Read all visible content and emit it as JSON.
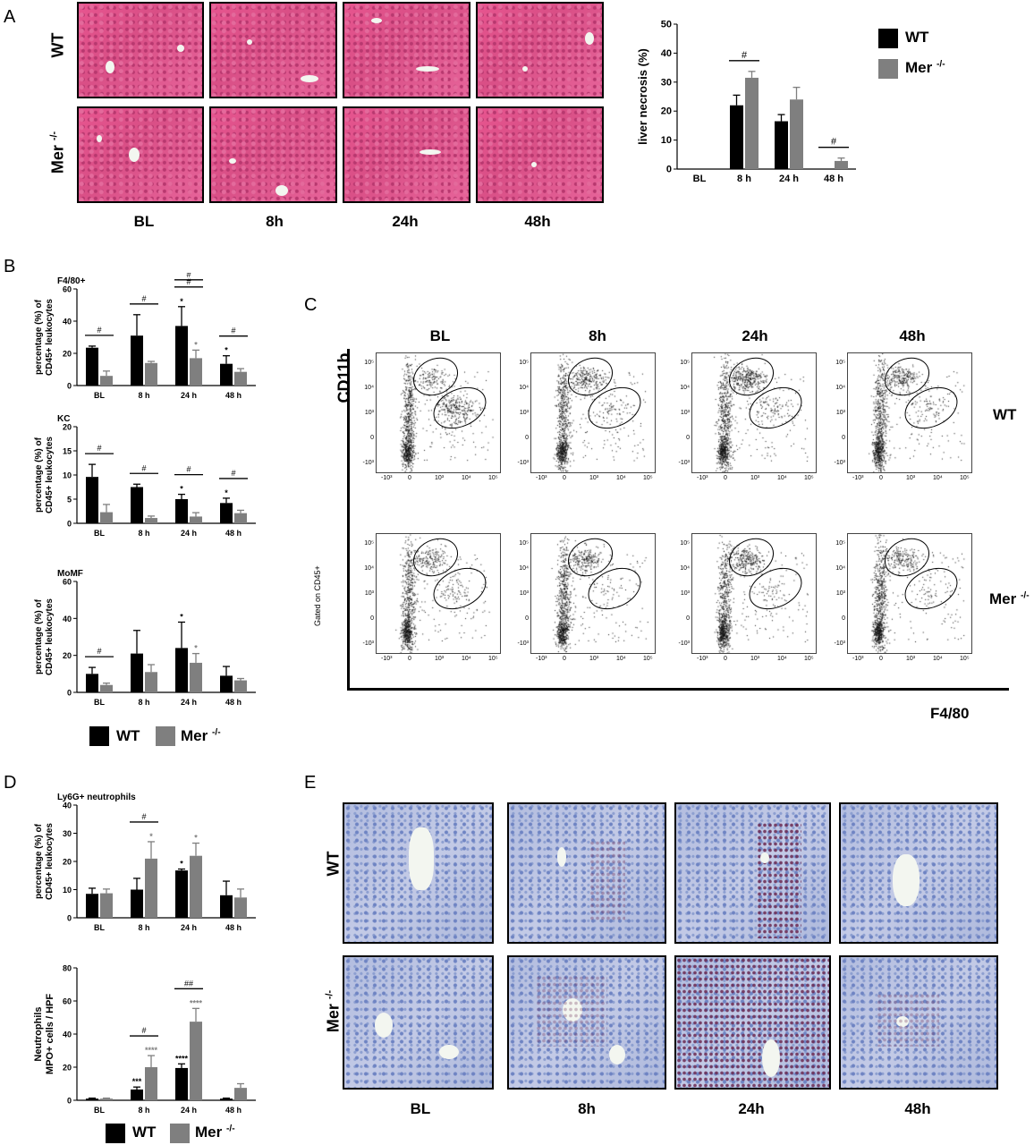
{
  "panels": {
    "a": "A",
    "b": "B",
    "c": "C",
    "d": "D",
    "e": "E"
  },
  "colors": {
    "wt": "#000000",
    "mer": "#7f7f7f",
    "he_stain": "#e0588f",
    "ihc_stain": "#b7c1e0"
  },
  "panel_a": {
    "row_labels": [
      "WT",
      "Mer"
    ],
    "mer_superscript": "-/-",
    "time_labels": [
      "BL",
      "8h",
      "24h",
      "48h"
    ]
  },
  "panel_c": {
    "ylabel": "CD11b",
    "xlabel": "F4/80",
    "time_labels": [
      "BL",
      "8h",
      "24h",
      "48h"
    ],
    "row_labels": [
      "WT",
      "Mer"
    ],
    "mer_superscript": "-/-",
    "gating_note": "Gated on CD45+",
    "axis_ticks_y": [
      "10⁵",
      "10⁴",
      "10³",
      "0",
      "-10³"
    ],
    "axis_ticks_x": [
      "-10³",
      "0",
      "10³",
      "10⁴",
      "10⁵"
    ]
  },
  "panel_e": {
    "row_labels": [
      "WT",
      "Mer"
    ],
    "mer_superscript": "-/-",
    "time_labels": [
      "BL",
      "8h",
      "24h",
      "48h"
    ]
  },
  "legend_b": {
    "wt": "WT",
    "mer": "Mer",
    "mer_sup": "-/-"
  },
  "legend_d": {
    "wt": "WT",
    "mer": "Mer",
    "mer_sup": "-/-"
  },
  "chart_data": [
    {
      "id": "liver-necrosis",
      "type": "bar",
      "title": "",
      "categories": [
        "BL",
        "8 h",
        "24 h",
        "48 h"
      ],
      "ylabel": "liver necrosis (%)",
      "ylim": [
        0,
        50
      ],
      "yticks": [
        0,
        10,
        20,
        30,
        40,
        50
      ],
      "legend_position": "right",
      "series": [
        {
          "name": "WT",
          "values": [
            0,
            22,
            16.5,
            0
          ],
          "errors": [
            0,
            3.5,
            2.3,
            0
          ]
        },
        {
          "name": "Mer -/-",
          "values": [
            0,
            31.5,
            24,
            2.8
          ],
          "errors": [
            0,
            2.2,
            4.2,
            1
          ]
        }
      ],
      "annotations": [
        {
          "category": "8 h",
          "type": "bracket",
          "text": "#"
        },
        {
          "category": "48 h",
          "type": "bracket",
          "text": "#"
        }
      ]
    },
    {
      "id": "f480",
      "type": "bar",
      "title": "F4/80+",
      "categories": [
        "BL",
        "8 h",
        "24 h",
        "48 h"
      ],
      "ylabel": "percentage (%) of CD45+ leukocytes",
      "ylim": [
        0,
        60
      ],
      "yticks": [
        0,
        20,
        40,
        60
      ],
      "series": [
        {
          "name": "WT",
          "values": [
            23.5,
            31,
            37,
            13.5
          ],
          "errors": [
            1,
            13,
            12,
            5
          ]
        },
        {
          "name": "Mer -/-",
          "values": [
            6,
            14,
            17,
            8.5
          ],
          "errors": [
            3,
            1,
            5,
            2
          ]
        }
      ],
      "annotations": [
        {
          "category": "BL",
          "type": "bracket",
          "text": "#"
        },
        {
          "category": "8 h",
          "type": "bracket",
          "text": "#"
        },
        {
          "category": "24 h",
          "type": "bracket",
          "text": "#"
        },
        {
          "category": "24 h",
          "type": "bracket-high",
          "text": "#"
        },
        {
          "category": "48 h",
          "type": "bracket",
          "text": "#"
        },
        {
          "category": "24 h",
          "series": 0,
          "text": "*"
        },
        {
          "category": "24 h",
          "series": 1,
          "text": "*"
        },
        {
          "category": "48 h",
          "series": 0,
          "text": "*"
        }
      ]
    },
    {
      "id": "kc",
      "type": "bar",
      "title": "KC",
      "categories": [
        "BL",
        "8 h",
        "24 h",
        "48 h"
      ],
      "ylabel": "percentage (%) of CD45+ leukocytes",
      "ylim": [
        0,
        20
      ],
      "yticks": [
        0,
        5,
        10,
        15,
        20
      ],
      "series": [
        {
          "name": "WT",
          "values": [
            9.6,
            7.5,
            5,
            4.2
          ],
          "errors": [
            2.6,
            0.6,
            1,
            1
          ]
        },
        {
          "name": "Mer -/-",
          "values": [
            2.3,
            1.1,
            1.4,
            2.1
          ],
          "errors": [
            1.6,
            0.4,
            0.8,
            0.6
          ]
        }
      ],
      "annotations": [
        {
          "category": "BL",
          "type": "bracket",
          "text": "#"
        },
        {
          "category": "8 h",
          "type": "bracket",
          "text": "#"
        },
        {
          "category": "24 h",
          "type": "bracket",
          "text": "#"
        },
        {
          "category": "48 h",
          "type": "bracket",
          "text": "#"
        },
        {
          "category": "24 h",
          "series": 0,
          "text": "*"
        },
        {
          "category": "48 h",
          "series": 0,
          "text": "*"
        }
      ]
    },
    {
      "id": "momf",
      "type": "bar",
      "title": "MoMF",
      "categories": [
        "BL",
        "8 h",
        "24 h",
        "48 h"
      ],
      "ylabel": "percentage (%) of CD45+ leukocytes",
      "ylim": [
        0,
        60
      ],
      "yticks": [
        0,
        20,
        40,
        60
      ],
      "series": [
        {
          "name": "WT",
          "values": [
            10,
            21,
            24,
            9
          ],
          "errors": [
            3.5,
            12.5,
            14,
            5
          ]
        },
        {
          "name": "Mer -/-",
          "values": [
            4,
            11,
            16,
            6.5
          ],
          "errors": [
            1,
            4,
            5,
            1
          ]
        }
      ],
      "annotations": [
        {
          "category": "BL",
          "type": "bracket",
          "text": "#"
        },
        {
          "category": "24 h",
          "series": 0,
          "text": "*"
        },
        {
          "category": "24 h",
          "series": 1,
          "text": "*"
        }
      ]
    },
    {
      "id": "ly6g",
      "type": "bar",
      "title": "Ly6G+ neutrophils",
      "categories": [
        "BL",
        "8 h",
        "24 h",
        "48 h"
      ],
      "ylabel": "percentage (%) of CD45+ leukocytes",
      "ylim": [
        0,
        40
      ],
      "yticks": [
        0,
        10,
        20,
        30,
        40
      ],
      "series": [
        {
          "name": "WT",
          "values": [
            8.5,
            10,
            16.8,
            8
          ],
          "errors": [
            2,
            4,
            0.5,
            5
          ]
        },
        {
          "name": "Mer -/-",
          "values": [
            8.7,
            21,
            22,
            7.2
          ],
          "errors": [
            1.5,
            6,
            4.5,
            3
          ]
        }
      ],
      "annotations": [
        {
          "category": "8 h",
          "type": "bracket",
          "text": "#"
        },
        {
          "category": "8 h",
          "series": 1,
          "text": "*"
        },
        {
          "category": "24 h",
          "series": 0,
          "text": "*"
        },
        {
          "category": "24 h",
          "series": 1,
          "text": "*"
        }
      ]
    },
    {
      "id": "mpo",
      "type": "bar",
      "title": "",
      "categories": [
        "BL",
        "8 h",
        "24 h",
        "48 h"
      ],
      "ylabel": "Neutrophils MPO+ cells / HPF",
      "ylim": [
        0,
        80
      ],
      "yticks": [
        0,
        20,
        40,
        60,
        80
      ],
      "series": [
        {
          "name": "WT",
          "values": [
            1,
            6.5,
            19.5,
            1
          ],
          "errors": [
            0.3,
            1.5,
            2.5,
            0.3
          ]
        },
        {
          "name": "Mer -/-",
          "values": [
            1,
            20,
            47.5,
            7.5
          ],
          "errors": [
            0.3,
            7,
            8,
            2.5
          ]
        }
      ],
      "annotations": [
        {
          "category": "8 h",
          "type": "bracket",
          "text": "#"
        },
        {
          "category": "24 h",
          "type": "bracket",
          "text": "##"
        },
        {
          "category": "8 h",
          "series": 0,
          "text": "***"
        },
        {
          "category": "8 h",
          "series": 1,
          "text": "****"
        },
        {
          "category": "24 h",
          "series": 0,
          "text": "****"
        },
        {
          "category": "24 h",
          "series": 1,
          "text": "****"
        }
      ]
    }
  ]
}
